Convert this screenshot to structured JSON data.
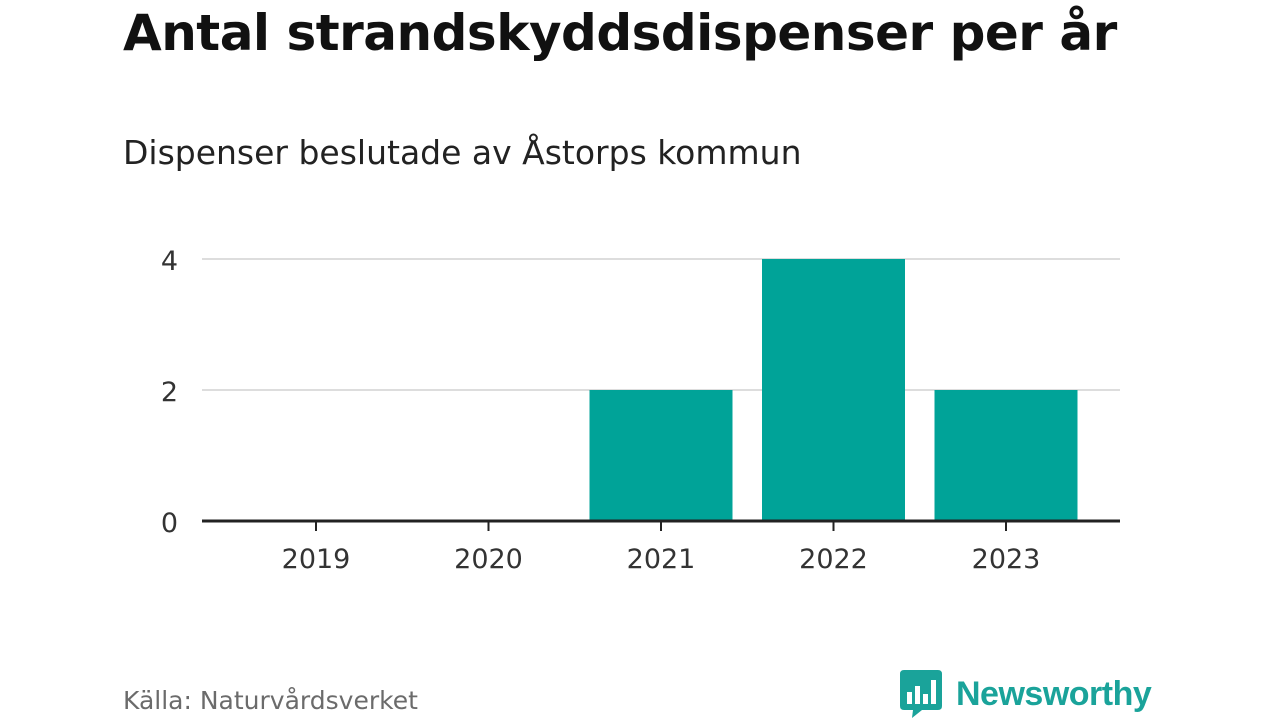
{
  "header": {
    "title": "Antal strandskyddsdispenser per år",
    "subtitle": "Dispenser beslutade av Åstorps kommun"
  },
  "footer": {
    "source": "Källa: Naturvårdsverket",
    "brand": "Newsworthy"
  },
  "colors": {
    "bar": "#00a398",
    "grid": "#dddddd",
    "axis": "#222222",
    "brand": "#1aa39a"
  },
  "icons": {
    "brand_logo": "newsworthy-chart-bubble-icon"
  },
  "chart_data": {
    "type": "bar",
    "title": "Antal strandskyddsdispenser per år",
    "subtitle": "Dispenser beslutade av Åstorps kommun",
    "categories": [
      "2019",
      "2020",
      "2021",
      "2022",
      "2023"
    ],
    "values": [
      0,
      0,
      2,
      4,
      2
    ],
    "yticks": [
      0,
      2,
      4
    ],
    "ylim": [
      0,
      4
    ],
    "xlabel": "",
    "ylabel": "",
    "grid": true
  }
}
